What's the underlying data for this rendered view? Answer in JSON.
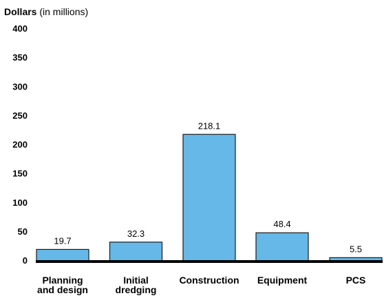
{
  "chart_data": {
    "type": "bar",
    "y_title_bold": "Dollars",
    "y_title_rest": " (in millions)",
    "categories": [
      [
        "Planning",
        "and design"
      ],
      [
        "Initial",
        "dredging"
      ],
      [
        "Construction"
      ],
      [
        "Equipment"
      ],
      [
        "PCS"
      ]
    ],
    "values": [
      19.7,
      32.3,
      218.1,
      48.4,
      5.5
    ],
    "value_labels": [
      "19.7",
      "32.3",
      "218.1",
      "48.4",
      "5.5"
    ],
    "yticks": [
      "0",
      "50",
      "100",
      "150",
      "200",
      "250",
      "300",
      "350",
      "400"
    ],
    "ylim": [
      0,
      400
    ],
    "grid": false,
    "bar_color": "#66b8e8",
    "bar_outline": "#1a1a1a",
    "baseline_color": "#000000"
  }
}
